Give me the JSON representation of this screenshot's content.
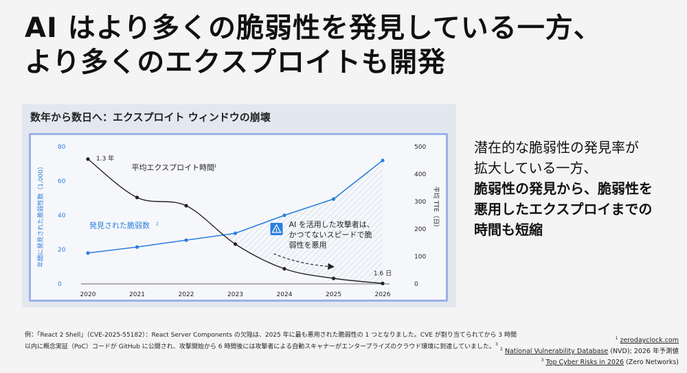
{
  "slide": {
    "title_lines": [
      "AI はより多くの脆弱性を発見している一方、",
      "より多くのエクスプロイトも開発"
    ],
    "side_text": {
      "line1": "潜在的な脆弱性の発見率が",
      "line2": "拡大している一方、",
      "line3": "脆弱性の発見から、脆弱性を",
      "line4": "悪用したエクスプロイまでの",
      "line5": "時間も短縮"
    },
    "footnote": {
      "line1": "例：「React 2 Shell」（CVE-2025-55182）：React Server Components の欠陥は、2025 年に最も悪用された脆弱性の 1 つとなりました。CVE が割り当てられてから 3 時間",
      "line2": "以内に概念実証（PoC）コードが GitHub に公開され、攻撃開始から 6 時間後には攻撃者による自動スキャナーがエンタープライズのクラウド環境に到達していました。"
    },
    "references": {
      "ref1": "zerodayclock.com",
      "ref2_link": "National Vulnerability Database",
      "ref2_rest": " (NVD); 2026 年予測値",
      "ref3_link": "Top Cyber Risks in 2026",
      "ref3_rest": " (Zero Networks)"
    }
  },
  "chart_data": {
    "type": "line",
    "title": "数年から数日へ：エクスプロイト ウィンドウの崩壊",
    "x": [
      "2020",
      "2021",
      "2022",
      "2023",
      "2024",
      "2025",
      "2026"
    ],
    "left_axis": {
      "label": "年間に発見された脆弱性数（1,000）",
      "ticks": [
        0,
        20,
        40,
        60,
        80
      ],
      "range": [
        0,
        80
      ]
    },
    "right_axis": {
      "label": "平均 TTE（日）",
      "ticks": [
        0,
        100,
        200,
        300,
        400,
        500
      ],
      "range": [
        0,
        500
      ]
    },
    "series": [
      {
        "name": "発見された脆弱数",
        "axis": "left",
        "values": [
          18,
          21.5,
          25.5,
          29.5,
          40,
          49.5,
          72
        ],
        "color": "#2a7fde"
      },
      {
        "name": "平均エクスプロイト時間",
        "axis": "right",
        "values": [
          455,
          315,
          285,
          145,
          55,
          20,
          1.6
        ],
        "color": "#222222"
      }
    ],
    "point_labels": {
      "first": "1.3 年",
      "last": "1.6 日"
    },
    "callout": "AI を活用した攻撃者は、かつてないスピードで脆弱性を悪用",
    "colors": {
      "panel": "#e3e7ef",
      "plot_border": "#9ab0e8",
      "warning_icon": "#2a7fde",
      "hatch": "#c9d6ea"
    }
  }
}
